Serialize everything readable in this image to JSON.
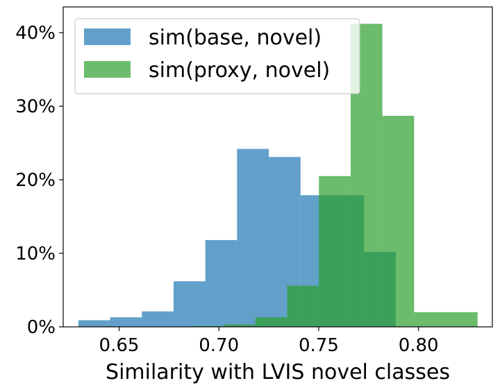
{
  "chart_data": {
    "type": "bar",
    "xlabel": "Similarity with LVIS novel classes",
    "ylabel": "",
    "xlim": [
      0.622,
      0.837
    ],
    "ylim": [
      0,
      43.5
    ],
    "x_ticks": [
      0.65,
      0.7,
      0.75,
      0.8
    ],
    "x_tick_labels": [
      "0.65",
      "0.70",
      "0.75",
      "0.80"
    ],
    "y_ticks": [
      0,
      10,
      20,
      30,
      40
    ],
    "y_tick_labels": [
      "0%",
      "10%",
      "20%",
      "30%",
      "40%"
    ],
    "legend_position": "top-left",
    "grid": false,
    "series": [
      {
        "name": "sim(base, novel)",
        "color": "#1f77b4",
        "opacity": 0.7,
        "bin_edges": [
          0.6296,
          0.6455,
          0.6614,
          0.6773,
          0.6932,
          0.7091,
          0.725,
          0.7409,
          0.7568,
          0.7727,
          0.7886,
          0.8045
        ],
        "values": [
          0.9,
          1.3,
          2.1,
          6.2,
          11.8,
          24.2,
          23.1,
          17.9,
          17.9,
          10.2,
          0
        ]
      },
      {
        "name": "sim(proxy, novel)",
        "color": "#2ca02c",
        "opacity": 0.7,
        "bin_edges": [
          0.6865,
          0.7024,
          0.7183,
          0.7342,
          0.7501,
          0.766,
          0.7819,
          0.7978,
          0.8137,
          0.8296
        ],
        "values": [
          0.1,
          0.3,
          1.3,
          5.6,
          20.5,
          41.2,
          28.7,
          2.0,
          2.0
        ]
      }
    ]
  }
}
